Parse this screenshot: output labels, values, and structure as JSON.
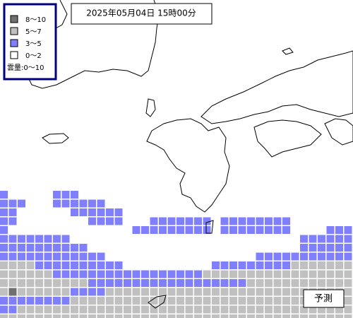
{
  "timestamp": "2025年05月04日 15時00分",
  "legend": {
    "items": [
      "8～10",
      "5～7",
      "3～5",
      "0～2"
    ],
    "caption": "雲量:0～10"
  },
  "label": "予測"
}
